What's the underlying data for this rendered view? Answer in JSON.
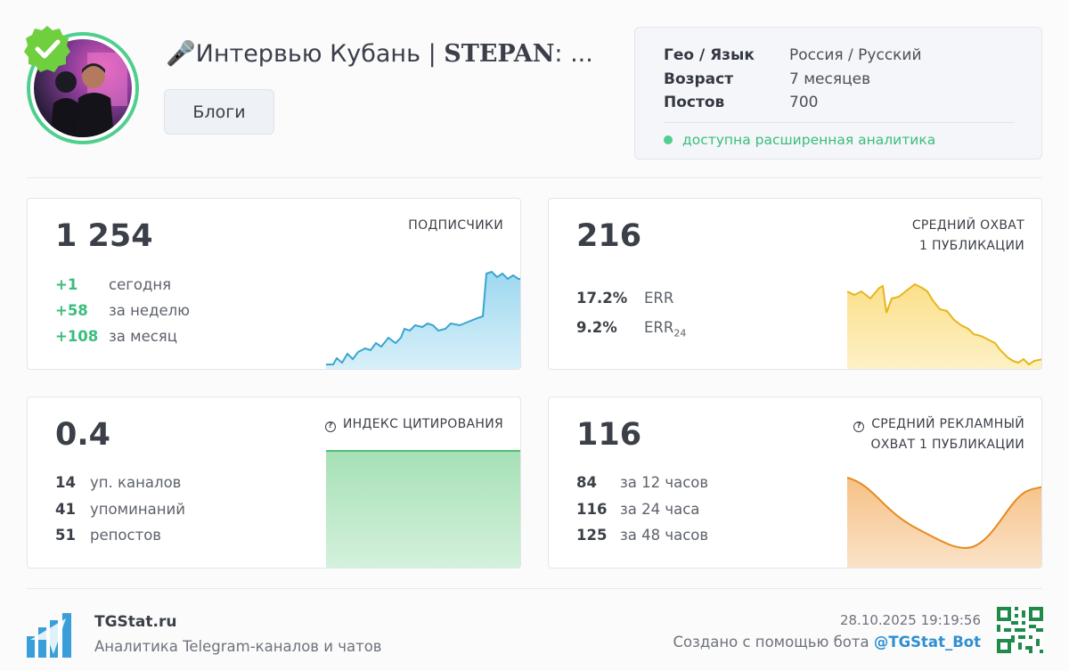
{
  "channel": {
    "title_prefix": "🎤Интервью Кубань | ",
    "title_bold": "STEPAN",
    "title_suffix": ": ...",
    "category": "Блоги"
  },
  "info": {
    "rows": [
      {
        "key": "Гео / Язык",
        "value": "Россия / Русский"
      },
      {
        "key": "Возраст",
        "value": "7 месяцев"
      },
      {
        "key": "Постов",
        "value": "700"
      }
    ],
    "extended": "доступна расширенная аналитика"
  },
  "subscribers": {
    "value": "1 254",
    "label": "ПОДПИСЧИКИ",
    "stats": [
      {
        "num": "+1",
        "text": "сегодня"
      },
      {
        "num": "+58",
        "text": "за неделю"
      },
      {
        "num": "+108",
        "text": "за месяц"
      }
    ]
  },
  "reach": {
    "value": "216",
    "label_line1": "СРЕДНИЙ ОХВАТ",
    "label_line2": "1 ПУБЛИКАЦИИ",
    "err": {
      "num": "17.2%",
      "text": "ERR"
    },
    "err24": {
      "num": "9.2%",
      "text": "ERR",
      "sub": "24"
    }
  },
  "citation": {
    "value": "0.4",
    "label": "ИНДЕКС ЦИТИРОВАНИЯ",
    "stats": [
      {
        "num": "14",
        "text": "уп. каналов"
      },
      {
        "num": "41",
        "text": "упоминаний"
      },
      {
        "num": "51",
        "text": "репостов"
      }
    ]
  },
  "ad_reach": {
    "value": "116",
    "label_line1": "СРЕДНИЙ РЕКЛАМНЫЙ",
    "label_line2": "ОХВАТ 1 ПУБЛИКАЦИИ",
    "stats": [
      {
        "num": "84",
        "text": "за 12 часов"
      },
      {
        "num": "116",
        "text": "за 24 часа"
      },
      {
        "num": "125",
        "text": "за 48 часов"
      }
    ]
  },
  "footer": {
    "brand": "TGStat.ru",
    "tagline": "Аналитика Telegram-каналов и чатов",
    "date": "28.10.2025 19:19:56",
    "made_by": "Создано с помощью бота ",
    "bot": "@TGStat_Bot"
  },
  "colors": {
    "green": "#3bbd7d",
    "blue_line": "#3aa6cf",
    "yellow_line": "#e7b51c",
    "orange_line": "#e58a1f",
    "link": "#2f8fd1"
  },
  "icons": [
    "verified-badge-icon",
    "microphone-icon",
    "help-circle-icon",
    "tgstat-logo-icon",
    "qr-code-icon"
  ]
}
